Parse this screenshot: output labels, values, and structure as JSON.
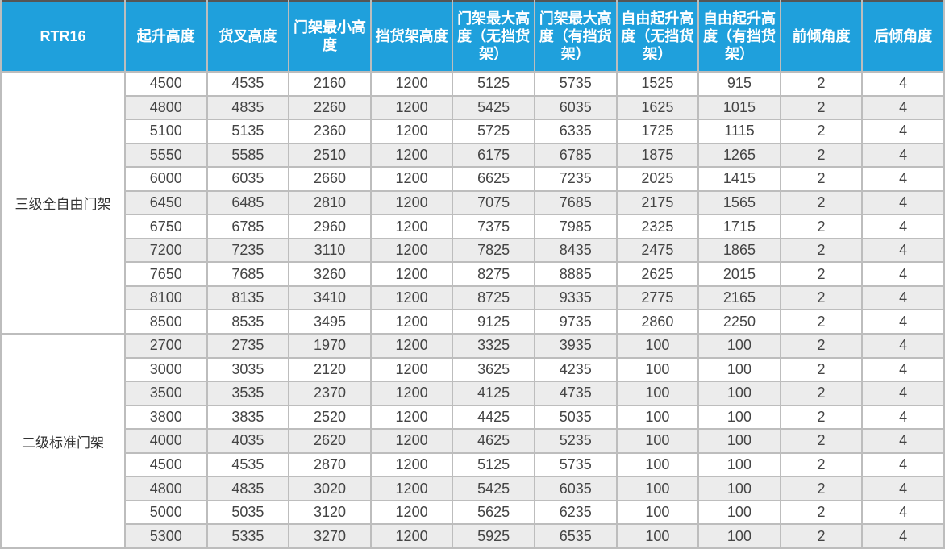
{
  "headers": [
    "RTR16",
    "起升高度",
    "货叉高度",
    "门架最小高度",
    "挡货架高度",
    "门架最大高度（无挡货架）",
    "门架最大高度（有挡货架）",
    "自由起升高度（无挡货架）",
    "自由起升高度（有挡货架）",
    "前倾角度",
    "后倾角度"
  ],
  "colors": {
    "header_bg": "#1fa0dc",
    "stripe": "#ececec",
    "border": "#bdbdbd"
  },
  "groups": [
    {
      "label": "三级全自由门架",
      "rows": [
        [
          "4500",
          "4535",
          "2160",
          "1200",
          "5125",
          "5735",
          "1525",
          "915",
          "2",
          "4"
        ],
        [
          "4800",
          "4835",
          "2260",
          "1200",
          "5425",
          "6035",
          "1625",
          "1015",
          "2",
          "4"
        ],
        [
          "5100",
          "5135",
          "2360",
          "1200",
          "5725",
          "6335",
          "1725",
          "1115",
          "2",
          "4"
        ],
        [
          "5550",
          "5585",
          "2510",
          "1200",
          "6175",
          "6785",
          "1875",
          "1265",
          "2",
          "4"
        ],
        [
          "6000",
          "6035",
          "2660",
          "1200",
          "6625",
          "7235",
          "2025",
          "1415",
          "2",
          "4"
        ],
        [
          "6450",
          "6485",
          "2810",
          "1200",
          "7075",
          "7685",
          "2175",
          "1565",
          "2",
          "4"
        ],
        [
          "6750",
          "6785",
          "2960",
          "1200",
          "7375",
          "7985",
          "2325",
          "1715",
          "2",
          "4"
        ],
        [
          "7200",
          "7235",
          "3110",
          "1200",
          "7825",
          "8435",
          "2475",
          "1865",
          "2",
          "4"
        ],
        [
          "7650",
          "7685",
          "3260",
          "1200",
          "8275",
          "8885",
          "2625",
          "2015",
          "2",
          "4"
        ],
        [
          "8100",
          "8135",
          "3410",
          "1200",
          "8725",
          "9335",
          "2775",
          "2165",
          "2",
          "4"
        ],
        [
          "8500",
          "8535",
          "3495",
          "1200",
          "9125",
          "9735",
          "2860",
          "2250",
          "2",
          "4"
        ]
      ]
    },
    {
      "label": "二级标准门架",
      "rows": [
        [
          "2700",
          "2735",
          "1970",
          "1200",
          "3325",
          "3935",
          "100",
          "100",
          "2",
          "4"
        ],
        [
          "3000",
          "3035",
          "2120",
          "1200",
          "3625",
          "4235",
          "100",
          "100",
          "2",
          "4"
        ],
        [
          "3500",
          "3535",
          "2370",
          "1200",
          "4125",
          "4735",
          "100",
          "100",
          "2",
          "4"
        ],
        [
          "3800",
          "3835",
          "2520",
          "1200",
          "4425",
          "5035",
          "100",
          "100",
          "2",
          "4"
        ],
        [
          "4000",
          "4035",
          "2620",
          "1200",
          "4625",
          "5235",
          "100",
          "100",
          "2",
          "4"
        ],
        [
          "4500",
          "4535",
          "2870",
          "1200",
          "5125",
          "5735",
          "100",
          "100",
          "2",
          "4"
        ],
        [
          "4800",
          "4835",
          "3020",
          "1200",
          "5425",
          "6035",
          "100",
          "100",
          "2",
          "4"
        ],
        [
          "5000",
          "5035",
          "3120",
          "1200",
          "5625",
          "6235",
          "100",
          "100",
          "2",
          "4"
        ],
        [
          "5300",
          "5335",
          "3270",
          "1200",
          "5925",
          "6535",
          "100",
          "100",
          "2",
          "4"
        ]
      ]
    }
  ]
}
